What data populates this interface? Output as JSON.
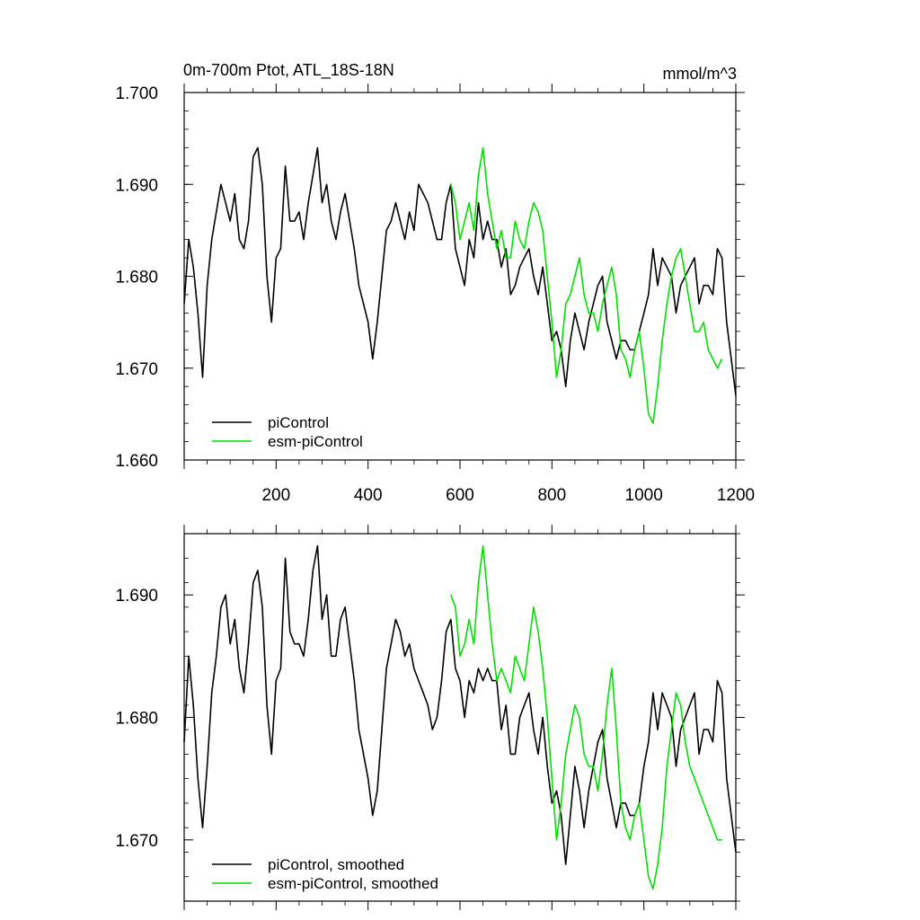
{
  "colors": {
    "picontrol": "#000000",
    "esm_picontrol": "#00e000",
    "frame": "#000000"
  },
  "chart_data": [
    {
      "type": "line",
      "title": "0m-700m Ptot, ATL_18S-18N",
      "units": "mmol/m^3",
      "xlim": [
        0,
        1200
      ],
      "ylim": [
        1.66,
        1.7
      ],
      "y_ticks": [
        "1.660",
        "1.670",
        "1.680",
        "1.690",
        "1.700"
      ],
      "x_ticks": [
        "200",
        "400",
        "600",
        "800",
        "1000",
        "1200"
      ],
      "legend": [
        "piControl",
        "esm-piControl"
      ],
      "legend_position": "bottom-left",
      "series": [
        {
          "name": "piControl",
          "x_start": 0,
          "x_step": 10,
          "values": [
            1.677,
            1.684,
            1.681,
            1.676,
            1.669,
            1.679,
            1.684,
            1.687,
            1.69,
            1.688,
            1.686,
            1.689,
            1.684,
            1.683,
            1.686,
            1.693,
            1.694,
            1.69,
            1.68,
            1.675,
            1.682,
            1.683,
            1.692,
            1.686,
            1.686,
            1.687,
            1.684,
            1.688,
            1.691,
            1.694,
            1.688,
            1.69,
            1.686,
            1.684,
            1.687,
            1.689,
            1.686,
            1.683,
            1.679,
            1.677,
            1.675,
            1.671,
            1.675,
            1.68,
            1.685,
            1.686,
            1.688,
            1.686,
            1.684,
            1.687,
            1.685,
            1.69,
            1.689,
            1.688,
            1.686,
            1.684,
            1.684,
            1.688,
            1.69,
            1.683,
            1.681,
            1.679,
            1.684,
            1.682,
            1.688,
            1.684,
            1.686,
            1.684,
            1.684,
            1.681,
            1.683,
            1.678,
            1.679,
            1.681,
            1.682,
            1.683,
            1.68,
            1.678,
            1.681,
            1.677,
            1.673,
            1.674,
            1.672,
            1.668,
            1.673,
            1.676,
            1.674,
            1.672,
            1.675,
            1.677,
            1.679,
            1.68,
            1.675,
            1.673,
            1.671,
            1.673,
            1.673,
            1.672,
            1.672,
            1.674,
            1.676,
            1.678,
            1.683,
            1.679,
            1.682,
            1.681,
            1.68,
            1.676,
            1.679,
            1.68,
            1.681,
            1.682,
            1.677,
            1.679,
            1.679,
            1.678,
            1.683,
            1.682,
            1.675,
            1.671,
            1.667
          ]
        },
        {
          "name": "esm-piControl",
          "x_start": 580,
          "x_step": 10,
          "values": [
            1.69,
            1.688,
            1.684,
            1.686,
            1.688,
            1.685,
            1.691,
            1.694,
            1.689,
            1.686,
            1.683,
            1.685,
            1.682,
            1.682,
            1.686,
            1.684,
            1.683,
            1.686,
            1.688,
            1.687,
            1.685,
            1.68,
            1.675,
            1.669,
            1.672,
            1.677,
            1.678,
            1.68,
            1.682,
            1.678,
            1.676,
            1.676,
            1.674,
            1.677,
            1.679,
            1.681,
            1.678,
            1.672,
            1.671,
            1.669,
            1.672,
            1.674,
            1.67,
            1.665,
            1.664,
            1.668,
            1.673,
            1.677,
            1.68,
            1.682,
            1.683,
            1.68,
            1.677,
            1.674,
            1.674,
            1.675,
            1.672,
            1.671,
            1.67,
            1.671
          ]
        }
      ]
    },
    {
      "type": "line",
      "title": "",
      "xlim": [
        0,
        1200
      ],
      "ylim": [
        1.665,
        1.695
      ],
      "y_ticks": [
        "1.670",
        "1.680",
        "1.690"
      ],
      "legend": [
        "piControl, smoothed",
        "esm-piControl, smoothed"
      ],
      "legend_position": "bottom-left",
      "series": [
        {
          "name": "piControl, smoothed",
          "x_start": 0,
          "x_step": 10,
          "values": [
            1.678,
            1.685,
            1.681,
            1.675,
            1.671,
            1.676,
            1.682,
            1.685,
            1.689,
            1.69,
            1.686,
            1.688,
            1.684,
            1.682,
            1.686,
            1.691,
            1.692,
            1.689,
            1.681,
            1.677,
            1.683,
            1.684,
            1.693,
            1.687,
            1.686,
            1.686,
            1.685,
            1.688,
            1.692,
            1.694,
            1.688,
            1.69,
            1.685,
            1.685,
            1.688,
            1.689,
            1.686,
            1.683,
            1.679,
            1.677,
            1.675,
            1.672,
            1.674,
            1.679,
            1.684,
            1.686,
            1.688,
            1.687,
            1.685,
            1.686,
            1.684,
            1.683,
            1.682,
            1.681,
            1.679,
            1.68,
            1.683,
            1.687,
            1.688,
            1.684,
            1.683,
            1.68,
            1.683,
            1.682,
            1.684,
            1.683,
            1.684,
            1.683,
            1.683,
            1.679,
            1.681,
            1.677,
            1.677,
            1.68,
            1.681,
            1.682,
            1.679,
            1.677,
            1.68,
            1.676,
            1.673,
            1.674,
            1.672,
            1.668,
            1.672,
            1.676,
            1.674,
            1.671,
            1.674,
            1.676,
            1.678,
            1.679,
            1.675,
            1.673,
            1.671,
            1.673,
            1.673,
            1.672,
            1.672,
            1.673,
            1.676,
            1.678,
            1.682,
            1.679,
            1.682,
            1.681,
            1.68,
            1.676,
            1.679,
            1.68,
            1.681,
            1.682,
            1.677,
            1.679,
            1.679,
            1.678,
            1.683,
            1.682,
            1.675,
            1.672,
            1.669
          ]
        },
        {
          "name": "esm-piControl, smoothed",
          "x_start": 580,
          "x_step": 10,
          "values": [
            1.69,
            1.689,
            1.685,
            1.686,
            1.688,
            1.686,
            1.691,
            1.694,
            1.69,
            1.686,
            1.683,
            1.684,
            1.683,
            1.682,
            1.685,
            1.684,
            1.683,
            1.686,
            1.689,
            1.687,
            1.684,
            1.68,
            1.675,
            1.67,
            1.673,
            1.677,
            1.679,
            1.681,
            1.68,
            1.677,
            1.676,
            1.676,
            1.674,
            1.677,
            1.681,
            1.684,
            1.679,
            1.673,
            1.671,
            1.67,
            1.672,
            1.673,
            1.67,
            1.667,
            1.666,
            1.668,
            1.671,
            1.676,
            1.679,
            1.682,
            1.681,
            1.678,
            1.676,
            1.675,
            1.674,
            1.673,
            1.672,
            1.671,
            1.67,
            1.67
          ]
        }
      ]
    }
  ]
}
